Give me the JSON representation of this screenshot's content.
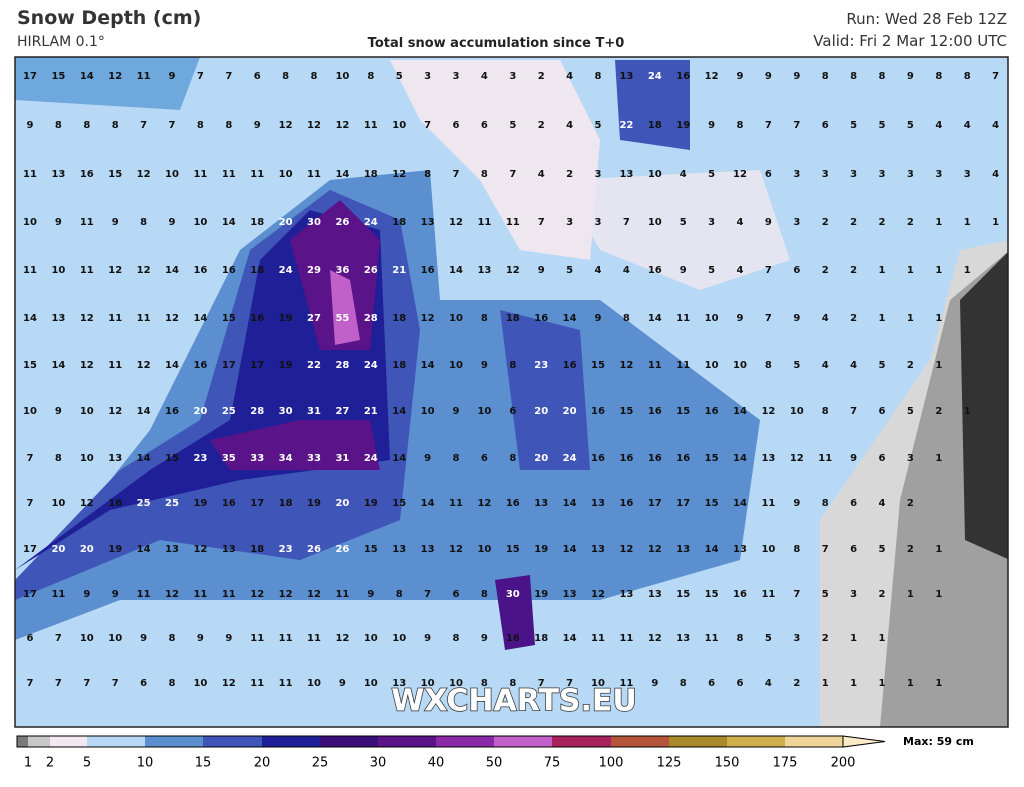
{
  "header": {
    "title": "Snow Depth (cm)",
    "model": "HIRLAM 0.1°",
    "subtitle": "Total snow accumulation since T+0",
    "run": "Run: Wed 28 Feb 12Z",
    "valid": "Valid: Fri 2 Mar 12:00 UTC"
  },
  "map": {
    "watermark": "WXCHARTS.EU",
    "rows": [
      [
        17,
        15,
        14,
        12,
        11,
        9,
        7,
        7,
        6,
        8,
        8,
        10,
        8,
        5,
        3,
        3,
        4,
        3,
        2,
        4,
        8,
        13,
        24,
        16,
        12,
        9,
        9,
        9,
        8,
        8,
        8,
        9,
        8,
        8,
        7
      ],
      [
        9,
        8,
        8,
        8,
        7,
        7,
        8,
        8,
        9,
        12,
        12,
        12,
        11,
        10,
        7,
        6,
        6,
        5,
        2,
        4,
        5,
        22,
        18,
        19,
        9,
        8,
        7,
        7,
        6,
        5,
        5,
        5,
        4,
        4,
        4
      ],
      [
        11,
        13,
        16,
        15,
        12,
        10,
        11,
        11,
        11,
        10,
        11,
        14,
        18,
        12,
        8,
        7,
        8,
        7,
        4,
        2,
        3,
        13,
        10,
        4,
        5,
        12,
        6,
        3,
        3,
        3,
        3,
        3,
        3,
        3,
        4
      ],
      [
        10,
        9,
        11,
        9,
        8,
        9,
        10,
        14,
        18,
        20,
        30,
        26,
        24,
        18,
        13,
        12,
        11,
        11,
        7,
        3,
        3,
        7,
        10,
        5,
        3,
        4,
        9,
        3,
        2,
        2,
        2,
        2,
        1,
        1,
        1
      ],
      [
        11,
        10,
        11,
        12,
        12,
        14,
        16,
        16,
        18,
        24,
        29,
        36,
        26,
        21,
        16,
        14,
        13,
        12,
        9,
        5,
        4,
        4,
        16,
        9,
        5,
        4,
        7,
        6,
        2,
        2,
        1,
        1,
        1,
        1
      ],
      [
        14,
        13,
        12,
        11,
        11,
        12,
        14,
        15,
        16,
        19,
        27,
        55,
        28,
        18,
        12,
        10,
        8,
        18,
        16,
        14,
        9,
        8,
        14,
        11,
        10,
        9,
        7,
        9,
        4,
        2,
        1,
        1,
        1
      ],
      [
        15,
        14,
        12,
        11,
        12,
        14,
        16,
        17,
        17,
        19,
        22,
        28,
        24,
        18,
        14,
        10,
        9,
        8,
        23,
        16,
        15,
        12,
        11,
        11,
        10,
        10,
        8,
        5,
        4,
        4,
        5,
        2,
        1
      ],
      [
        10,
        9,
        10,
        12,
        14,
        16,
        20,
        25,
        28,
        30,
        31,
        27,
        21,
        14,
        10,
        9,
        10,
        6,
        20,
        20,
        16,
        15,
        16,
        15,
        16,
        14,
        12,
        10,
        8,
        7,
        6,
        5,
        2,
        1
      ],
      [
        7,
        8,
        10,
        13,
        14,
        15,
        23,
        35,
        33,
        34,
        33,
        31,
        24,
        14,
        9,
        8,
        6,
        8,
        20,
        24,
        16,
        16,
        16,
        16,
        15,
        14,
        13,
        12,
        11,
        9,
        6,
        3,
        1
      ],
      [
        7,
        10,
        12,
        16,
        25,
        25,
        19,
        16,
        17,
        18,
        19,
        20,
        19,
        15,
        14,
        11,
        12,
        16,
        13,
        14,
        13,
        16,
        17,
        17,
        15,
        14,
        11,
        9,
        8,
        6,
        4,
        2
      ],
      [
        17,
        20,
        20,
        19,
        14,
        13,
        12,
        13,
        18,
        23,
        26,
        26,
        15,
        13,
        13,
        12,
        10,
        15,
        19,
        14,
        13,
        12,
        12,
        13,
        14,
        13,
        10,
        8,
        7,
        6,
        5,
        2,
        1
      ],
      [
        17,
        11,
        9,
        9,
        11,
        12,
        11,
        11,
        12,
        12,
        12,
        11,
        9,
        8,
        7,
        6,
        8,
        30,
        19,
        13,
        12,
        13,
        13,
        15,
        15,
        16,
        11,
        7,
        5,
        3,
        2,
        1,
        1
      ],
      [
        6,
        7,
        10,
        10,
        9,
        8,
        9,
        9,
        11,
        11,
        11,
        12,
        10,
        10,
        9,
        8,
        9,
        16,
        18,
        14,
        11,
        11,
        12,
        13,
        11,
        8,
        5,
        3,
        2,
        1,
        1
      ],
      [
        7,
        7,
        7,
        7,
        6,
        8,
        10,
        12,
        11,
        11,
        10,
        9,
        10,
        13,
        10,
        10,
        8,
        8,
        7,
        7,
        10,
        11,
        9,
        8,
        6,
        6,
        4,
        2,
        1,
        1,
        1,
        1,
        1
      ]
    ]
  },
  "legend": {
    "labels": [
      1,
      2,
      5,
      10,
      15,
      20,
      25,
      30,
      40,
      50,
      75,
      100,
      125,
      150,
      175,
      200
    ],
    "max": "Max: 59 cm"
  }
}
